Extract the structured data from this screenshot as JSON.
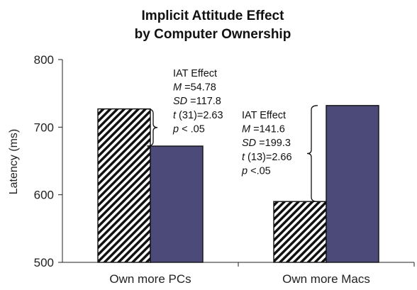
{
  "chart_data": {
    "type": "bar",
    "title": [
      "Implicit Attitude Effect",
      "by Computer Ownership"
    ],
    "ylabel": "Latency (ms)",
    "xlabel": "",
    "ylim": [
      500,
      800
    ],
    "yticks": [
      500,
      600,
      700,
      800
    ],
    "categories": [
      "Own more PCs",
      "Own more Macs"
    ],
    "series": [
      {
        "values": [
          727,
          590
        ],
        "pattern": "diagonal-hatch"
      },
      {
        "values": [
          672,
          732
        ],
        "color": "#4b4a79"
      }
    ],
    "annotations": [
      {
        "category": "Own more PCs",
        "lines": [
          [
            {
              "t": "IAT Effect",
              "i": false
            }
          ],
          [
            {
              "t": "M",
              "i": true
            },
            {
              "t": " =54.78",
              "i": false
            }
          ],
          [
            {
              "t": "SD",
              "i": true
            },
            {
              "t": " =117.8",
              "i": false
            }
          ],
          [
            {
              "t": "t",
              "i": true
            },
            {
              "t": " (31)=2.63",
              "i": false
            }
          ],
          [
            {
              "t": "p",
              "i": true
            },
            {
              "t": " < .05",
              "i": false
            }
          ]
        ]
      },
      {
        "category": "Own more Macs",
        "lines": [
          [
            {
              "t": "IAT Effect",
              "i": false
            }
          ],
          [
            {
              "t": "M",
              "i": true
            },
            {
              "t": " =141.6",
              "i": false
            }
          ],
          [
            {
              "t": "SD",
              "i": true
            },
            {
              "t": " =199.3",
              "i": false
            }
          ],
          [
            {
              "t": "t",
              "i": true
            },
            {
              "t": " (13)=2.66",
              "i": false
            }
          ],
          [
            {
              "t": "p",
              "i": true
            },
            {
              "t": " <.05",
              "i": false
            }
          ]
        ]
      }
    ],
    "colors": {
      "hatch_fg": "#111111",
      "hatch_bg": "#ffffff",
      "bar2": "#4b4a79"
    },
    "grid": false,
    "legend": "none"
  }
}
